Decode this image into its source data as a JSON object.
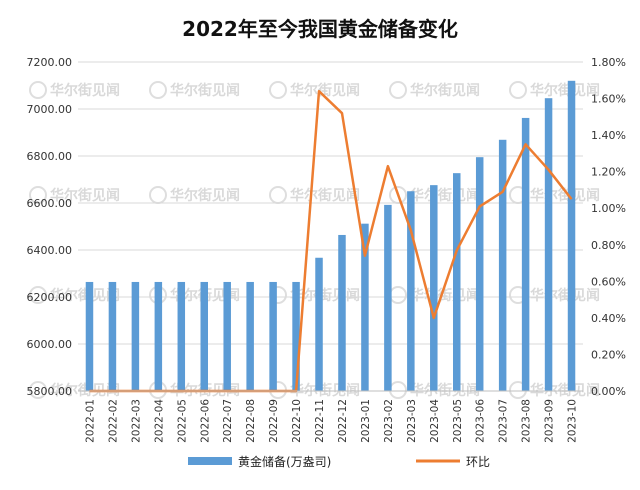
{
  "watermark": "华尔街见闻",
  "chart_data": {
    "type": "bar",
    "title": "2022年至今我国黄金储备变化",
    "categories": [
      "2022-01",
      "2022-02",
      "2022-03",
      "2022-04",
      "2022-05",
      "2022-06",
      "2022-07",
      "2022-08",
      "2022-09",
      "2022-10",
      "2022-11",
      "2022-12",
      "2023-01",
      "2023-02",
      "2023-03",
      "2023-04",
      "2023-05",
      "2023-06",
      "2023-07",
      "2023-08",
      "2023-09",
      "2023-10"
    ],
    "y_left": {
      "range": [
        5800,
        7200
      ],
      "ticks": [
        "5800.00",
        "6000.00",
        "6200.00",
        "6400.00",
        "6600.00",
        "6800.00",
        "7000.00",
        "7200.00"
      ],
      "tick_values": [
        5800,
        6000,
        6200,
        6400,
        6600,
        6800,
        7000,
        7200
      ]
    },
    "y_right": {
      "range": [
        0,
        0.018
      ],
      "ticks": [
        "0.00%",
        "0.20%",
        "0.40%",
        "0.60%",
        "0.80%",
        "1.00%",
        "1.20%",
        "1.40%",
        "1.60%",
        "1.80%"
      ],
      "tick_values": [
        0,
        0.002,
        0.004,
        0.006,
        0.008,
        0.01,
        0.012,
        0.014,
        0.016,
        0.018
      ]
    },
    "grid": true,
    "legend_position": "bottom",
    "series": [
      {
        "name": "黄金储备(万盎司)",
        "type": "bar",
        "axis": "left",
        "color": "#5b9bd5",
        "values": [
          6264,
          6264,
          6264,
          6264,
          6264,
          6264,
          6264,
          6264,
          6264,
          6264,
          6367,
          6464,
          6512,
          6592,
          6650,
          6676,
          6727,
          6795,
          6869,
          6962,
          7046,
          7120
        ]
      },
      {
        "name": "环比",
        "type": "line",
        "axis": "right",
        "color": "#ed7d31",
        "values": [
          0,
          0,
          0,
          0,
          0,
          0,
          0,
          0,
          0,
          0,
          0.0164,
          0.0152,
          0.0074,
          0.0123,
          0.0088,
          0.004,
          0.0077,
          0.0101,
          0.0109,
          0.0135,
          0.0121,
          0.0105
        ]
      }
    ]
  }
}
